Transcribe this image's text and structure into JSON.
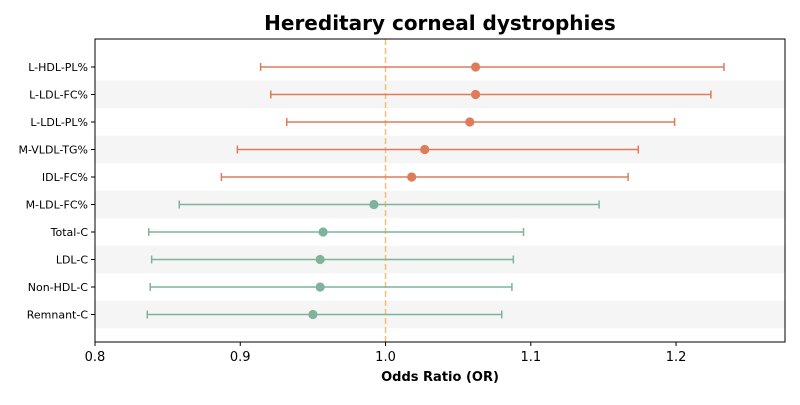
{
  "chart_data": {
    "type": "forest",
    "title": "Hereditary corneal dystrophies",
    "xlabel": "Odds Ratio (OR)",
    "xlim": [
      0.8,
      1.275
    ],
    "x_ticks": [
      0.8,
      0.9,
      1.0,
      1.1,
      1.2
    ],
    "x_tick_labels": [
      "0.8",
      "0.9",
      "1.0",
      "1.1",
      "1.2"
    ],
    "reference_line": 1.0,
    "grid": false,
    "colors": {
      "positive": "#e07b5a",
      "negative": "#7fb39b",
      "reference_line": "#f2c27b",
      "band": "#f5f5f5"
    },
    "rows": [
      {
        "label": "L-HDL-PL%",
        "or": 1.062,
        "lower": 0.914,
        "upper": 1.233,
        "group": "positive"
      },
      {
        "label": "L-LDL-FC%",
        "or": 1.062,
        "lower": 0.921,
        "upper": 1.224,
        "group": "positive"
      },
      {
        "label": "L-LDL-PL%",
        "or": 1.058,
        "lower": 0.932,
        "upper": 1.199,
        "group": "positive"
      },
      {
        "label": "M-VLDL-TG%",
        "or": 1.027,
        "lower": 0.898,
        "upper": 1.174,
        "group": "positive"
      },
      {
        "label": "IDL-FC%",
        "or": 1.018,
        "lower": 0.887,
        "upper": 1.167,
        "group": "positive"
      },
      {
        "label": "M-LDL-FC%",
        "or": 0.992,
        "lower": 0.858,
        "upper": 1.147,
        "group": "negative"
      },
      {
        "label": "Total-C",
        "or": 0.957,
        "lower": 0.837,
        "upper": 1.095,
        "group": "negative"
      },
      {
        "label": "LDL-C",
        "or": 0.955,
        "lower": 0.839,
        "upper": 1.088,
        "group": "negative"
      },
      {
        "label": "Non-HDL-C",
        "or": 0.955,
        "lower": 0.838,
        "upper": 1.087,
        "group": "negative"
      },
      {
        "label": "Remnant-C",
        "or": 0.95,
        "lower": 0.836,
        "upper": 1.08,
        "group": "negative"
      }
    ]
  }
}
